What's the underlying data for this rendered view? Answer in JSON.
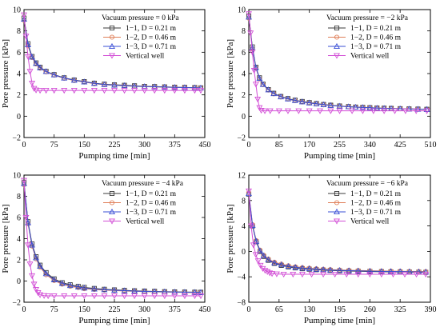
{
  "chart_data": [
    {
      "type": "line",
      "legend_title": "Vacuum pressure = 0 kPa",
      "xlabel": "Pumping time [min]",
      "ylabel": "Pore pressure [kPa]",
      "xlim": [
        0,
        450
      ],
      "ylim": [
        -2,
        10
      ],
      "xticks": [
        0,
        75,
        150,
        225,
        300,
        375,
        450
      ],
      "yticks": [
        -2,
        0,
        2,
        4,
        6,
        8,
        10
      ],
      "legend_position": "top-right",
      "series": [
        {
          "name": "1−1, D = 0.21 m",
          "color": "#3b3b3b",
          "marker": "square",
          "x": [
            0,
            10,
            20,
            30,
            40,
            55,
            75,
            100,
            125,
            150,
            175,
            200,
            225,
            250,
            275,
            300,
            325,
            350,
            375,
            400,
            425,
            440
          ],
          "y": [
            9.2,
            6.8,
            5.6,
            5.0,
            4.6,
            4.2,
            3.9,
            3.6,
            3.4,
            3.25,
            3.1,
            3.0,
            2.95,
            2.9,
            2.85,
            2.8,
            2.78,
            2.75,
            2.72,
            2.7,
            2.68,
            2.66
          ]
        },
        {
          "name": "1−2, D = 0.46 m",
          "color": "#e0805a",
          "marker": "circle",
          "x": [
            0,
            10,
            20,
            30,
            40,
            55,
            75,
            100,
            125,
            150,
            175,
            200,
            225,
            250,
            275,
            300,
            325,
            350,
            375,
            400,
            425,
            440
          ],
          "y": [
            9.0,
            6.6,
            5.5,
            4.9,
            4.5,
            4.15,
            3.85,
            3.55,
            3.35,
            3.2,
            3.05,
            2.95,
            2.9,
            2.85,
            2.8,
            2.77,
            2.74,
            2.72,
            2.7,
            2.68,
            2.66,
            2.65
          ]
        },
        {
          "name": "1−3, D = 0.71 m",
          "color": "#3a4fd6",
          "marker": "triangle-up",
          "x": [
            0,
            10,
            20,
            30,
            40,
            55,
            75,
            100,
            125,
            150,
            175,
            200,
            225,
            250,
            275,
            300,
            325,
            350,
            375,
            400,
            425,
            440
          ],
          "y": [
            9.1,
            6.7,
            5.55,
            4.95,
            4.55,
            4.2,
            3.88,
            3.58,
            3.38,
            3.22,
            3.08,
            2.97,
            2.92,
            2.87,
            2.82,
            2.78,
            2.76,
            2.73,
            2.71,
            2.69,
            2.67,
            2.65
          ]
        },
        {
          "name": "Vertical well",
          "color": "#d24fd6",
          "marker": "triangle-down",
          "x": [
            0,
            5,
            10,
            15,
            20,
            25,
            30,
            40,
            55,
            75,
            100,
            125,
            150,
            175,
            200,
            225,
            250,
            275,
            300,
            325,
            350,
            375,
            400,
            425,
            440
          ],
          "y": [
            9.5,
            7.5,
            5.6,
            4.2,
            3.1,
            2.6,
            2.45,
            2.42,
            2.42,
            2.42,
            2.42,
            2.42,
            2.42,
            2.42,
            2.42,
            2.42,
            2.42,
            2.42,
            2.42,
            2.42,
            2.42,
            2.42,
            2.42,
            2.42,
            2.42
          ]
        }
      ]
    },
    {
      "type": "line",
      "legend_title": "Vacuum pressure = −2 kPa",
      "xlabel": "Pumping time [min]",
      "ylabel": "Pore pressure [kPa]",
      "xlim": [
        0,
        510
      ],
      "ylim": [
        -2,
        10
      ],
      "xticks": [
        0,
        85,
        170,
        255,
        340,
        425,
        510
      ],
      "yticks": [
        -2,
        0,
        2,
        4,
        6,
        8,
        10
      ],
      "legend_position": "top-right",
      "series": [
        {
          "name": "1−1, D = 0.21 m",
          "color": "#3b3b3b",
          "marker": "square",
          "x": [
            0,
            10,
            20,
            30,
            40,
            55,
            70,
            90,
            110,
            130,
            150,
            170,
            190,
            210,
            230,
            255,
            280,
            300,
            320,
            340,
            360,
            380,
            400,
            425,
            450,
            475,
            500
          ],
          "y": [
            9.4,
            6.5,
            4.6,
            3.6,
            3.0,
            2.5,
            2.15,
            1.85,
            1.65,
            1.5,
            1.38,
            1.28,
            1.18,
            1.1,
            1.03,
            0.96,
            0.9,
            0.86,
            0.83,
            0.8,
            0.77,
            0.75,
            0.73,
            0.71,
            0.69,
            0.67,
            0.65
          ]
        },
        {
          "name": "1−2, D = 0.46 m",
          "color": "#e0805a",
          "marker": "circle",
          "x": [
            0,
            10,
            20,
            30,
            40,
            55,
            70,
            90,
            110,
            130,
            150,
            170,
            190,
            210,
            230,
            255,
            280,
            300,
            320,
            340,
            360,
            380,
            400,
            425,
            450,
            475,
            500
          ],
          "y": [
            9.2,
            6.3,
            4.5,
            3.5,
            2.95,
            2.45,
            2.1,
            1.8,
            1.6,
            1.45,
            1.33,
            1.23,
            1.14,
            1.06,
            1.0,
            0.93,
            0.88,
            0.84,
            0.81,
            0.78,
            0.75,
            0.73,
            0.71,
            0.69,
            0.67,
            0.65,
            0.63
          ]
        },
        {
          "name": "1−3, D = 0.71 m",
          "color": "#3a4fd6",
          "marker": "triangle-up",
          "x": [
            0,
            10,
            20,
            30,
            40,
            55,
            70,
            90,
            110,
            130,
            150,
            170,
            190,
            210,
            230,
            255,
            280,
            300,
            320,
            340,
            360,
            380,
            400,
            425,
            450,
            475,
            500
          ],
          "y": [
            9.3,
            6.4,
            4.55,
            3.55,
            2.98,
            2.48,
            2.12,
            1.82,
            1.62,
            1.47,
            1.35,
            1.25,
            1.16,
            1.08,
            1.01,
            0.94,
            0.89,
            0.85,
            0.82,
            0.79,
            0.76,
            0.74,
            0.72,
            0.7,
            0.68,
            0.66,
            0.64
          ]
        },
        {
          "name": "Vertical well",
          "color": "#d24fd6",
          "marker": "triangle-down",
          "x": [
            0,
            5,
            10,
            15,
            20,
            25,
            30,
            35,
            45,
            60,
            85,
            110,
            140,
            170,
            200,
            230,
            255,
            290,
            320,
            350,
            380,
            410,
            440,
            470,
            500
          ],
          "y": [
            9.6,
            7.8,
            6.0,
            4.3,
            3.0,
            1.6,
            0.8,
            0.55,
            0.5,
            0.5,
            0.5,
            0.5,
            0.5,
            0.5,
            0.5,
            0.5,
            0.5,
            0.5,
            0.5,
            0.5,
            0.5,
            0.5,
            0.5,
            0.5,
            0.5
          ]
        }
      ]
    },
    {
      "type": "line",
      "legend_title": "Vacuum pressure = −4 kPa",
      "xlabel": "Pumping time [min]",
      "ylabel": "Pore pressure [kPa]",
      "xlim": [
        0,
        450
      ],
      "ylim": [
        -2,
        10
      ],
      "xticks": [
        0,
        75,
        150,
        225,
        300,
        375,
        450
      ],
      "yticks": [
        -2,
        0,
        2,
        4,
        6,
        8,
        10
      ],
      "legend_position": "top-right",
      "series": [
        {
          "name": "1−1, D = 0.21 m",
          "color": "#3b3b3b",
          "marker": "square",
          "x": [
            0,
            10,
            20,
            30,
            40,
            55,
            75,
            95,
            115,
            135,
            150,
            175,
            200,
            225,
            250,
            275,
            300,
            325,
            350,
            375,
            400,
            425,
            440
          ],
          "y": [
            9.3,
            5.6,
            3.5,
            2.3,
            1.5,
            0.8,
            0.2,
            -0.15,
            -0.35,
            -0.5,
            -0.6,
            -0.7,
            -0.78,
            -0.83,
            -0.88,
            -0.92,
            -0.95,
            -0.98,
            -1.0,
            -1.02,
            -1.04,
            -1.05,
            -1.06
          ]
        },
        {
          "name": "1−2, D = 0.46 m",
          "color": "#e0805a",
          "marker": "circle",
          "x": [
            0,
            10,
            20,
            30,
            40,
            55,
            75,
            95,
            115,
            135,
            150,
            175,
            200,
            225,
            250,
            275,
            300,
            325,
            350,
            375,
            400,
            425,
            440
          ],
          "y": [
            9.1,
            5.4,
            3.3,
            2.1,
            1.3,
            0.6,
            0.05,
            -0.3,
            -0.5,
            -0.62,
            -0.72,
            -0.8,
            -0.86,
            -0.9,
            -0.94,
            -0.97,
            -1.0,
            -1.02,
            -1.04,
            -1.06,
            -1.08,
            -1.09,
            -1.1
          ]
        },
        {
          "name": "1−3, D = 0.71 m",
          "color": "#3a4fd6",
          "marker": "triangle-up",
          "x": [
            0,
            10,
            20,
            30,
            40,
            55,
            75,
            95,
            115,
            135,
            150,
            175,
            200,
            225,
            250,
            275,
            300,
            325,
            350,
            375,
            400,
            425,
            440
          ],
          "y": [
            9.2,
            5.5,
            3.4,
            2.2,
            1.4,
            0.7,
            0.12,
            -0.22,
            -0.42,
            -0.56,
            -0.66,
            -0.75,
            -0.82,
            -0.87,
            -0.91,
            -0.95,
            -0.98,
            -1.0,
            -1.02,
            -1.04,
            -1.06,
            -1.07,
            -1.08
          ]
        },
        {
          "name": "Vertical well",
          "color": "#d24fd6",
          "marker": "triangle-down",
          "x": [
            0,
            5,
            10,
            15,
            20,
            25,
            30,
            35,
            40,
            50,
            60,
            75,
            100,
            125,
            150,
            175,
            200,
            225,
            250,
            275,
            300,
            325,
            350,
            375,
            400,
            425,
            440
          ],
          "y": [
            9.5,
            6.0,
            3.4,
            1.6,
            0.5,
            -0.3,
            -0.8,
            -1.1,
            -1.3,
            -1.38,
            -1.4,
            -1.4,
            -1.4,
            -1.4,
            -1.4,
            -1.4,
            -1.4,
            -1.4,
            -1.4,
            -1.4,
            -1.4,
            -1.4,
            -1.4,
            -1.4,
            -1.4,
            -1.4,
            -1.4
          ]
        }
      ]
    },
    {
      "type": "line",
      "legend_title": "Vacuum pressure = −6 kPa",
      "xlabel": "Pumping time [min]",
      "ylabel": "Pore pressure [kPa]",
      "xlim": [
        0,
        390
      ],
      "ylim": [
        -8,
        12
      ],
      "xticks": [
        0,
        65,
        130,
        195,
        260,
        325,
        390
      ],
      "yticks": [
        -8,
        -4,
        0,
        4,
        8,
        12
      ],
      "legend_position": "top-right",
      "series": [
        {
          "name": "1−1, D = 0.21 m",
          "color": "#3b3b3b",
          "marker": "square",
          "x": [
            0,
            8,
            16,
            24,
            32,
            42,
            55,
            70,
            85,
            100,
            115,
            130,
            145,
            160,
            175,
            195,
            215,
            235,
            260,
            285,
            305,
            325,
            345,
            365,
            380
          ],
          "y": [
            9.0,
            4.0,
            1.5,
            0.0,
            -0.8,
            -1.4,
            -1.9,
            -2.2,
            -2.45,
            -2.6,
            -2.72,
            -2.8,
            -2.88,
            -2.95,
            -3.0,
            -3.05,
            -3.1,
            -3.13,
            -3.17,
            -3.2,
            -3.22,
            -3.24,
            -3.26,
            -3.28,
            -3.3
          ]
        },
        {
          "name": "1−2, D = 0.46 m",
          "color": "#e0805a",
          "marker": "circle",
          "x": [
            0,
            8,
            16,
            24,
            32,
            42,
            55,
            70,
            85,
            100,
            115,
            130,
            145,
            160,
            175,
            195,
            215,
            235,
            260,
            285,
            305,
            325,
            345,
            365,
            380
          ],
          "y": [
            9.2,
            4.2,
            1.7,
            0.2,
            -0.6,
            -1.2,
            -1.7,
            -2.0,
            -2.25,
            -2.42,
            -2.55,
            -2.65,
            -2.73,
            -2.8,
            -2.86,
            -2.92,
            -2.97,
            -3.0,
            -3.05,
            -3.08,
            -3.1,
            -3.12,
            -3.14,
            -3.16,
            -3.18
          ]
        },
        {
          "name": "1−3, D = 0.71 m",
          "color": "#3a4fd6",
          "marker": "triangle-up",
          "x": [
            0,
            8,
            16,
            24,
            32,
            42,
            55,
            70,
            85,
            100,
            115,
            130,
            145,
            160,
            175,
            195,
            215,
            235,
            260,
            285,
            305,
            325,
            345,
            365,
            380
          ],
          "y": [
            9.1,
            4.1,
            1.6,
            0.1,
            -0.7,
            -1.3,
            -1.8,
            -2.1,
            -2.35,
            -2.5,
            -2.63,
            -2.72,
            -2.8,
            -2.87,
            -2.93,
            -2.98,
            -3.03,
            -3.07,
            -3.11,
            -3.14,
            -3.16,
            -3.18,
            -3.2,
            -3.22,
            -3.24
          ]
        },
        {
          "name": "Vertical well",
          "color": "#d24fd6",
          "marker": "triangle-down",
          "x": [
            0,
            5,
            10,
            15,
            20,
            25,
            30,
            35,
            40,
            45,
            50,
            60,
            75,
            95,
            115,
            135,
            160,
            185,
            210,
            235,
            260,
            285,
            310,
            335,
            360,
            380
          ],
          "y": [
            9.5,
            4.0,
            1.0,
            -0.5,
            -1.5,
            -2.2,
            -2.7,
            -3.0,
            -3.2,
            -3.4,
            -3.5,
            -3.55,
            -3.6,
            -3.6,
            -3.6,
            -3.6,
            -3.6,
            -3.6,
            -3.6,
            -3.6,
            -3.6,
            -3.6,
            -3.6,
            -3.6,
            -3.6,
            -3.6
          ]
        }
      ]
    }
  ]
}
